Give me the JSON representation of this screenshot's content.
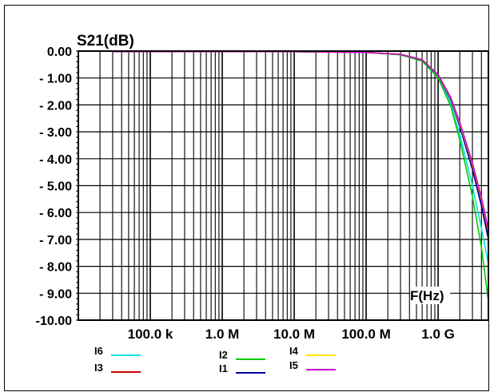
{
  "chart_data": {
    "type": "line",
    "title": "",
    "ylabel": "S21(dB)",
    "xlabel": "F(Hz)",
    "x_scale": "log",
    "xlim": [
      10000,
      5000000000
    ],
    "ylim": [
      -10.0,
      0.0
    ],
    "grid": true,
    "y_ticks": [
      {
        "value": 0,
        "label": "0.00"
      },
      {
        "value": -1,
        "label": "- 1.00"
      },
      {
        "value": -2,
        "label": "- 2.00"
      },
      {
        "value": -3,
        "label": "- 3.00"
      },
      {
        "value": -4,
        "label": "- 4.00"
      },
      {
        "value": -5,
        "label": "- 5.00"
      },
      {
        "value": -6,
        "label": "- 6.00"
      },
      {
        "value": -7,
        "label": "- 7.00"
      },
      {
        "value": -8,
        "label": "- 8.00"
      },
      {
        "value": -9,
        "label": "- 9.00"
      },
      {
        "value": -10,
        "label": "-10.00"
      }
    ],
    "x_ticks": [
      {
        "value": 100000,
        "label": "100.0 k"
      },
      {
        "value": 1000000,
        "label": "1.0 M"
      },
      {
        "value": 10000000,
        "label": "10.0 M"
      },
      {
        "value": 100000000,
        "label": "100.0 M"
      },
      {
        "value": 1000000000,
        "label": "1.0 G"
      }
    ],
    "series": [
      {
        "name": "I6",
        "color": "#00e5e5",
        "x": [
          30000,
          10000000,
          100000000,
          300000000,
          600000000,
          1000000000,
          1500000000,
          2000000000,
          3000000000,
          4000000000,
          5000000000
        ],
        "y": [
          -0.02,
          -0.02,
          -0.05,
          -0.13,
          -0.35,
          -0.95,
          -1.95,
          -3.1,
          -5.0,
          -6.6,
          -7.9
        ]
      },
      {
        "name": "I3",
        "color": "#cc0000",
        "x": [
          30000,
          10000000,
          100000000,
          300000000,
          600000000,
          1000000000,
          1500000000,
          2000000000,
          3000000000,
          4000000000,
          5000000000
        ],
        "y": [
          -0.02,
          -0.02,
          -0.05,
          -0.12,
          -0.33,
          -0.9,
          -1.8,
          -2.75,
          -4.3,
          -5.6,
          -6.8
        ]
      },
      {
        "name": "I2",
        "color": "#00cc00",
        "x": [
          30000,
          10000000,
          100000000,
          300000000,
          600000000,
          1000000000,
          1500000000,
          2000000000,
          3000000000,
          4000000000,
          5000000000
        ],
        "y": [
          -0.02,
          -0.02,
          -0.05,
          -0.14,
          -0.37,
          -1.0,
          -2.05,
          -3.3,
          -5.4,
          -7.3,
          -9.3
        ]
      },
      {
        "name": "I1",
        "color": "#000099",
        "x": [
          30000,
          10000000,
          100000000,
          300000000,
          600000000,
          1000000000,
          1500000000,
          2000000000,
          3000000000,
          4000000000,
          5000000000
        ],
        "y": [
          -0.02,
          -0.02,
          -0.05,
          -0.12,
          -0.33,
          -0.9,
          -1.8,
          -2.8,
          -4.4,
          -5.75,
          -7.0
        ]
      },
      {
        "name": "I4",
        "color": "#ffe600",
        "x": [
          30000,
          10000000,
          100000000,
          300000000,
          600000000,
          1000000000,
          1500000000,
          2000000000,
          3000000000,
          4000000000,
          5000000000
        ],
        "y": [
          -0.02,
          -0.02,
          -0.05,
          -0.12,
          -0.32,
          -0.88,
          -1.75,
          -2.7,
          -4.2,
          -5.5,
          -6.7
        ]
      },
      {
        "name": "I5",
        "color": "#cc00cc",
        "x": [
          30000,
          10000000,
          100000000,
          300000000,
          600000000,
          1000000000,
          1500000000,
          2000000000,
          3000000000,
          4000000000,
          5000000000
        ],
        "y": [
          -0.02,
          -0.02,
          -0.05,
          -0.12,
          -0.32,
          -0.87,
          -1.72,
          -2.65,
          -4.15,
          -5.45,
          -6.65
        ]
      }
    ]
  }
}
